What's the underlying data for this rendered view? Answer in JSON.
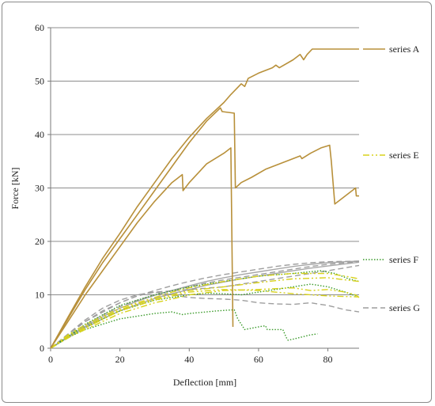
{
  "chart_data": {
    "type": "line",
    "title": "",
    "xlabel": "Deflection [mm]",
    "ylabel": "Force [kN]",
    "xlim": [
      0,
      89
    ],
    "ylim": [
      0,
      60
    ],
    "x_ticks": [
      "0",
      "20",
      "40",
      "60",
      "80"
    ],
    "y_ticks": [
      "0",
      "10",
      "20",
      "30",
      "40",
      "50",
      "60"
    ],
    "grid": "horizontal",
    "legend_position": "right",
    "series": [
      {
        "name": "series A",
        "color": "#B8903A",
        "style": "solid",
        "curves": [
          [
            [
              0,
              0
            ],
            [
              5,
              5
            ],
            [
              10,
              10
            ],
            [
              15,
              14.5
            ],
            [
              20,
              19
            ],
            [
              25,
              23.5
            ],
            [
              30,
              27.5
            ],
            [
              35,
              31
            ],
            [
              38,
              32.5
            ],
            [
              38.2,
              29.5
            ],
            [
              40,
              31
            ],
            [
              45,
              34.5
            ],
            [
              50,
              36.5
            ],
            [
              52,
              37.5
            ],
            [
              52.6,
              4
            ]
          ],
          [
            [
              0,
              0
            ],
            [
              5,
              5.5
            ],
            [
              10,
              11
            ],
            [
              15,
              16
            ],
            [
              20,
              20.5
            ],
            [
              25,
              25
            ],
            [
              30,
              29.5
            ],
            [
              35,
              34
            ],
            [
              40,
              38.5
            ],
            [
              45,
              42.5
            ],
            [
              49,
              45
            ],
            [
              49.5,
              44.3
            ],
            [
              53,
              44
            ],
            [
              53.3,
              30
            ],
            [
              55,
              31
            ],
            [
              58,
              32
            ],
            [
              62,
              33.5
            ],
            [
              68,
              35
            ],
            [
              72,
              36
            ],
            [
              72.5,
              35.5
            ],
            [
              75,
              36.5
            ],
            [
              78,
              37.5
            ],
            [
              80.5,
              38
            ],
            [
              81,
              35
            ],
            [
              82,
              27
            ],
            [
              85,
              28.5
            ],
            [
              88,
              30
            ],
            [
              88.2,
              28.5
            ],
            [
              89,
              28.5
            ]
          ],
          [
            [
              0,
              0
            ],
            [
              5,
              5.8
            ],
            [
              10,
              11.5
            ],
            [
              15,
              16.8
            ],
            [
              20,
              21.5
            ],
            [
              25,
              26.5
            ],
            [
              30,
              31
            ],
            [
              35,
              35.5
            ],
            [
              40,
              39.5
            ],
            [
              45,
              43
            ],
            [
              50,
              46
            ],
            [
              52,
              47.5
            ],
            [
              55,
              49.5
            ],
            [
              56,
              49
            ],
            [
              57,
              50.5
            ],
            [
              60,
              51.5
            ],
            [
              64,
              52.5
            ],
            [
              65,
              53
            ],
            [
              66,
              52.5
            ],
            [
              70,
              54
            ],
            [
              72,
              55
            ],
            [
              73,
              54
            ],
            [
              74,
              55
            ],
            [
              75.5,
              56
            ],
            [
              89,
              56
            ]
          ]
        ]
      },
      {
        "name": "series E",
        "color": "#D8D21C",
        "style": "dash-dot-dot",
        "curves": [
          [
            [
              0,
              0
            ],
            [
              5,
              2
            ],
            [
              10,
              3.5
            ],
            [
              15,
              5
            ],
            [
              20,
              6.5
            ],
            [
              25,
              7.5
            ],
            [
              30,
              8.5
            ],
            [
              35,
              9.2
            ],
            [
              40,
              10
            ],
            [
              50,
              10.8
            ],
            [
              60,
              11
            ],
            [
              70,
              11.3
            ],
            [
              75,
              10.8
            ],
            [
              80,
              11
            ],
            [
              85,
              10.5
            ],
            [
              88,
              10
            ],
            [
              89,
              9.5
            ]
          ],
          [
            [
              0,
              0
            ],
            [
              5,
              2.3
            ],
            [
              10,
              4
            ],
            [
              15,
              5.7
            ],
            [
              20,
              7.2
            ],
            [
              25,
              8.3
            ],
            [
              30,
              9.2
            ],
            [
              35,
              10
            ],
            [
              40,
              10.8
            ],
            [
              50,
              11.5
            ],
            [
              60,
              12.3
            ],
            [
              70,
              13
            ],
            [
              80,
              13.2
            ],
            [
              85,
              12.8
            ],
            [
              89,
              12.5
            ]
          ],
          [
            [
              0,
              0
            ],
            [
              5,
              2.5
            ],
            [
              10,
              4.4
            ],
            [
              15,
              6
            ],
            [
              20,
              7.5
            ],
            [
              25,
              8.5
            ],
            [
              30,
              9.5
            ],
            [
              35,
              10.5
            ],
            [
              40,
              11.3
            ],
            [
              50,
              12.5
            ],
            [
              60,
              13.5
            ],
            [
              70,
              14
            ],
            [
              80,
              14
            ],
            [
              85,
              13.5
            ],
            [
              89,
              13
            ]
          ],
          [
            [
              0,
              0
            ],
            [
              10,
              3.8
            ],
            [
              20,
              7
            ],
            [
              30,
              9
            ],
            [
              40,
              10.5
            ],
            [
              50,
              11
            ],
            [
              60,
              10.8
            ],
            [
              70,
              10.2
            ],
            [
              80,
              9.8
            ],
            [
              89,
              9.6
            ]
          ]
        ]
      },
      {
        "name": "series F",
        "color": "#3A9A2A",
        "style": "dotted",
        "curves": [
          [
            [
              0,
              0
            ],
            [
              5,
              2
            ],
            [
              10,
              3.5
            ],
            [
              15,
              4.5
            ],
            [
              20,
              5.5
            ],
            [
              25,
              6
            ],
            [
              30,
              6.5
            ],
            [
              35,
              6.8
            ],
            [
              38,
              6.3
            ],
            [
              40,
              6.5
            ],
            [
              45,
              6.8
            ],
            [
              48,
              7
            ],
            [
              53,
              7.2
            ],
            [
              54,
              5.5
            ],
            [
              56,
              3.5
            ],
            [
              60,
              4
            ],
            [
              62,
              4.2
            ],
            [
              62.5,
              3.5
            ],
            [
              67,
              3.5
            ],
            [
              68,
              2
            ],
            [
              68.5,
              1.5
            ],
            [
              70,
              1.7
            ],
            [
              75,
              2.5
            ],
            [
              77,
              2.7
            ]
          ],
          [
            [
              0,
              0
            ],
            [
              5,
              2.2
            ],
            [
              10,
              4
            ],
            [
              15,
              5.5
            ],
            [
              20,
              7
            ],
            [
              25,
              8
            ],
            [
              30,
              9
            ],
            [
              35,
              9.5
            ],
            [
              40,
              10
            ],
            [
              45,
              10.3
            ],
            [
              50,
              10.2
            ],
            [
              55,
              10
            ],
            [
              60,
              10.5
            ],
            [
              65,
              11
            ],
            [
              70,
              11.5
            ],
            [
              75,
              12
            ],
            [
              80,
              11.5
            ],
            [
              85,
              10.5
            ],
            [
              88,
              9.8
            ]
          ],
          [
            [
              0,
              0
            ],
            [
              10,
              4.5
            ],
            [
              20,
              8
            ],
            [
              30,
              10
            ],
            [
              40,
              11.5
            ],
            [
              50,
              12.5
            ],
            [
              60,
              13.5
            ],
            [
              70,
              14
            ],
            [
              78,
              14.5
            ],
            [
              82,
              14
            ],
            [
              86,
              13
            ],
            [
              89,
              12.5
            ]
          ]
        ]
      },
      {
        "name": "series G",
        "color": "#9E9E9E",
        "style": "dashed",
        "curves": [
          [
            [
              0,
              0
            ],
            [
              5,
              2.3
            ],
            [
              10,
              4.3
            ],
            [
              15,
              6.2
            ],
            [
              20,
              7.8
            ],
            [
              25,
              9
            ],
            [
              30,
              10
            ],
            [
              35,
              10.8
            ],
            [
              40,
              11.5
            ],
            [
              45,
              12.2
            ],
            [
              50,
              12.8
            ],
            [
              55,
              13.3
            ],
            [
              60,
              13.8
            ],
            [
              65,
              14.3
            ],
            [
              70,
              14.8
            ],
            [
              75,
              15.3
            ],
            [
              80,
              15.7
            ],
            [
              85,
              16
            ],
            [
              89,
              16.2
            ]
          ],
          [
            [
              0,
              0
            ],
            [
              5,
              2.6
            ],
            [
              10,
              5
            ],
            [
              15,
              7
            ],
            [
              20,
              8.5
            ],
            [
              25,
              9.8
            ],
            [
              30,
              10.8
            ],
            [
              35,
              11.7
            ],
            [
              40,
              12.5
            ],
            [
              45,
              13.2
            ],
            [
              50,
              13.8
            ],
            [
              55,
              14.3
            ],
            [
              60,
              14.8
            ],
            [
              65,
              15.3
            ],
            [
              70,
              15.7
            ],
            [
              75,
              16
            ],
            [
              80,
              16.2
            ],
            [
              89,
              16.3
            ]
          ],
          [
            [
              0,
              0
            ],
            [
              10,
              5.3
            ],
            [
              15,
              7.5
            ],
            [
              20,
              9
            ],
            [
              25,
              10
            ],
            [
              30,
              10.5
            ],
            [
              35,
              10
            ],
            [
              40,
              9.5
            ],
            [
              45,
              9.3
            ],
            [
              50,
              9.2
            ],
            [
              55,
              9
            ],
            [
              60,
              8.5
            ],
            [
              65,
              8.3
            ],
            [
              70,
              8.2
            ],
            [
              75,
              8.5
            ],
            [
              80,
              8
            ],
            [
              85,
              7.2
            ],
            [
              89,
              6.8
            ]
          ],
          [
            [
              0,
              0
            ],
            [
              10,
              5
            ],
            [
              20,
              8.5
            ],
            [
              25,
              9.8
            ],
            [
              30,
              10.5
            ],
            [
              40,
              11
            ],
            [
              50,
              11.5
            ],
            [
              60,
              12.5
            ],
            [
              70,
              13.5
            ],
            [
              80,
              14.5
            ],
            [
              89,
              15.5
            ]
          ]
        ]
      },
      {
        "name": "",
        "color": "#A8A8A8",
        "style": "solid",
        "curves": [
          [
            [
              0,
              0
            ],
            [
              5,
              2.2
            ],
            [
              10,
              4.1
            ],
            [
              15,
              5.9
            ],
            [
              20,
              7.5
            ],
            [
              25,
              8.8
            ],
            [
              30,
              9.9
            ],
            [
              35,
              10.8
            ],
            [
              40,
              11.7
            ],
            [
              45,
              12.5
            ],
            [
              50,
              13.2
            ],
            [
              55,
              13.8
            ],
            [
              60,
              14.3
            ],
            [
              65,
              14.8
            ],
            [
              70,
              15.3
            ],
            [
              75,
              15.7
            ],
            [
              80,
              16
            ],
            [
              85,
              16.2
            ],
            [
              89,
              16.3
            ]
          ],
          [
            [
              0,
              0
            ],
            [
              5,
              2
            ],
            [
              10,
              3.8
            ],
            [
              15,
              5.5
            ],
            [
              20,
              7
            ],
            [
              25,
              8.2
            ],
            [
              30,
              9.3
            ],
            [
              35,
              10.2
            ],
            [
              40,
              11
            ],
            [
              45,
              11.8
            ],
            [
              50,
              12.4
            ],
            [
              55,
              13
            ],
            [
              60,
              13.5
            ],
            [
              65,
              14
            ],
            [
              70,
              14.5
            ],
            [
              75,
              15
            ],
            [
              80,
              15.4
            ],
            [
              85,
              15.8
            ],
            [
              89,
              16.1
            ]
          ]
        ]
      }
    ]
  }
}
